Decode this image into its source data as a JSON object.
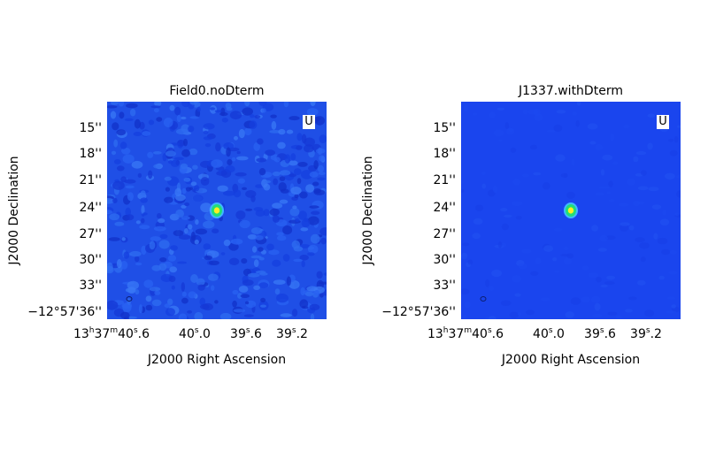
{
  "colors": {
    "background_left": "#1f4fe6",
    "background_right": "#1a45ee",
    "source_core": "#ffee22",
    "source_ring": "#22dd77",
    "badge": "#ffffff"
  },
  "axes": {
    "xlabel": "J2000 Right Ascension",
    "ylabel": "J2000 Declination",
    "yticks": [
      "15''",
      "18''",
      "21''",
      "24''",
      "27''",
      "30''",
      "33''",
      "−12°57'36''"
    ],
    "xticks": [
      {
        "h": "13",
        "m": "37",
        "s": "40",
        "frac": ".6"
      },
      {
        "h": "",
        "m": "",
        "s": "40",
        "frac": ".0"
      },
      {
        "h": "",
        "m": "",
        "s": "39",
        "frac": ".6"
      },
      {
        "h": "",
        "m": "",
        "s": "39",
        "frac": ".2"
      }
    ]
  },
  "panels": [
    {
      "title": "Field0.noDterm",
      "polarization": "U",
      "style": "speckled"
    },
    {
      "title": "J1337.withDterm",
      "polarization": "U",
      "style": "smooth"
    }
  ]
}
